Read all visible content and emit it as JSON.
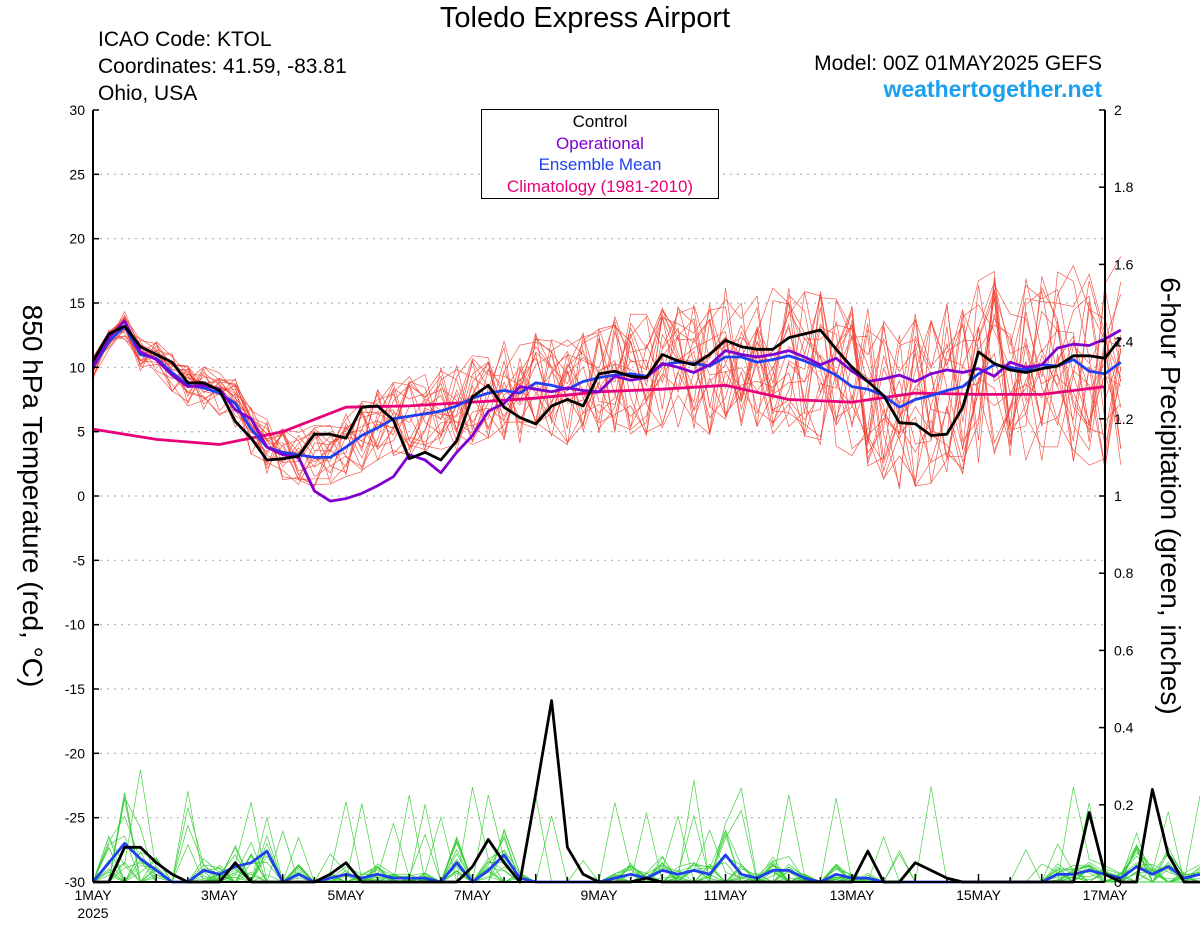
{
  "header": {
    "title": "Toledo Express Airport",
    "icao": "ICAO Code: KTOL",
    "coordinates": "Coordinates: 41.59, -83.81",
    "location": "Ohio, USA",
    "model": "Model: 00Z 01MAY2025 GEFS",
    "site": "weathertogether.net"
  },
  "legend": {
    "control": "Control",
    "operational": "Operational",
    "mean": "Ensemble Mean",
    "climatology": "Climatology (1981-2010)"
  },
  "colors": {
    "control": "#000000",
    "operational": "#8000d0",
    "mean": "#2040f0",
    "climatology": "#e8007a",
    "members_temp": "#f04030",
    "members_precip": "#30cc30",
    "site": "#1aa0f0",
    "grid": "#b0b0b0"
  },
  "chart_data": {
    "type": "line",
    "x_unit": "days since 00Z 01MAY2025",
    "xlim": [
      0,
      16
    ],
    "x_ticks": [
      {
        "x": 0,
        "label": "1MAY",
        "sublabel": "2025"
      },
      {
        "x": 2,
        "label": "3MAY"
      },
      {
        "x": 4,
        "label": "5MAY"
      },
      {
        "x": 6,
        "label": "7MAY"
      },
      {
        "x": 8,
        "label": "9MAY"
      },
      {
        "x": 10,
        "label": "11MAY"
      },
      {
        "x": 12,
        "label": "13MAY"
      },
      {
        "x": 14,
        "label": "15MAY"
      },
      {
        "x": 16,
        "label": "17MAY"
      }
    ],
    "ylabel_left": "850 hPa Temperature (red, °C)",
    "ylabel_right": "6-hour Precipitation (green, inches)",
    "ylim_left": [
      -30,
      30
    ],
    "yticks_left": [
      -30,
      -25,
      -20,
      -15,
      -10,
      -5,
      0,
      5,
      10,
      15,
      20,
      25,
      30
    ],
    "ylim_right": [
      0,
      2
    ],
    "yticks_right": [
      0,
      0.2,
      0.4,
      0.6,
      0.8,
      1,
      1.2,
      1.4,
      1.6,
      1.8,
      2
    ],
    "grid": "dotted horizontal",
    "temperature_series": [
      {
        "name": "Control",
        "x_step": 0.25,
        "values": [
          10.5,
          12.6,
          13.2,
          11.6,
          11.0,
          10.4,
          8.8,
          8.8,
          8.2,
          5.8,
          4.5,
          2.8,
          2.9,
          3.1,
          4.8,
          4.8,
          4.5,
          6.9,
          7.0,
          5.9,
          2.9,
          3.4,
          2.8,
          4.3,
          7.7,
          8.6,
          6.9,
          6.1,
          5.6,
          7.0,
          7.5,
          7.0,
          9.5,
          9.7,
          9.3,
          9.2,
          11.0,
          10.5,
          10.2,
          11.0,
          12.1,
          11.6,
          11.4,
          11.4,
          12.3,
          12.6,
          12.9,
          11.4,
          10.0,
          8.9,
          7.8,
          5.7,
          5.6,
          4.7,
          4.8,
          6.9,
          11.2,
          10.3,
          9.8,
          9.6,
          9.9,
          10.1,
          10.9,
          10.9,
          10.7,
          12.3
        ]
      },
      {
        "name": "Operational",
        "x_step": 0.25,
        "values": [
          10.1,
          12.3,
          13.6,
          11.2,
          10.6,
          9.4,
          8.5,
          8.6,
          8.3,
          6.7,
          6.0,
          3.8,
          3.2,
          3.0,
          0.4,
          -0.4,
          -0.2,
          0.2,
          0.8,
          1.5,
          3.2,
          2.8,
          1.8,
          3.4,
          4.7,
          6.6,
          7.2,
          8.5,
          8.3,
          8.1,
          8.4,
          8.2,
          8.1,
          9.3,
          9.0,
          9.2,
          10.3,
          10.0,
          9.6,
          10.2,
          11.3,
          11.0,
          10.8,
          11.0,
          11.3,
          10.8,
          10.2,
          10.7,
          9.7,
          8.9,
          9.1,
          9.4,
          8.9,
          9.5,
          9.8,
          9.6,
          9.9,
          9.3,
          10.4,
          10.0,
          10.2,
          11.5,
          11.8,
          11.7,
          12.2,
          12.9
        ]
      },
      {
        "name": "Ensemble Mean",
        "x_step": 0.25,
        "values": [
          10.0,
          12.0,
          13.2,
          11.0,
          10.7,
          9.6,
          8.6,
          8.4,
          8.0,
          7.2,
          5.2,
          3.8,
          3.4,
          3.2,
          3.0,
          3.0,
          3.8,
          4.7,
          5.3,
          6.0,
          6.2,
          6.4,
          6.6,
          7.0,
          7.6,
          8.0,
          8.2,
          8.0,
          8.8,
          8.6,
          8.3,
          8.9,
          9.2,
          9.4,
          9.5,
          9.3,
          10.2,
          10.4,
          10.3,
          10.1,
          10.8,
          10.8,
          10.4,
          10.6,
          10.9,
          10.5,
          10.0,
          9.4,
          8.5,
          8.3,
          7.8,
          6.9,
          7.5,
          7.8,
          8.2,
          8.5,
          9.5,
          10.2,
          10.0,
          9.8,
          10.2,
          10.1,
          10.6,
          9.7,
          9.5,
          10.4
        ]
      },
      {
        "name": "Climatology (1981-2010)",
        "x_step": 1,
        "values": [
          5.2,
          4.4,
          4.0,
          5.0,
          6.9,
          7.0,
          7.3,
          7.6,
          8.1,
          8.3,
          8.6,
          7.5,
          7.3,
          8.0,
          7.9,
          7.9,
          8.5
        ]
      }
    ],
    "precipitation_series": [
      {
        "name": "Control",
        "x_step": 0.25,
        "values": [
          0.0,
          0.0,
          0.09,
          0.09,
          0.05,
          0.02,
          0.0,
          0.0,
          0.0,
          0.05,
          0.0,
          0.0,
          0.0,
          0.0,
          0.0,
          0.02,
          0.05,
          0.0,
          0.0,
          0.0,
          0.0,
          0.0,
          0.0,
          0.0,
          0.04,
          0.11,
          0.05,
          0.0,
          0.23,
          0.47,
          0.09,
          0.02,
          0.0,
          0.0,
          0.0,
          0.01,
          0.0,
          0.0,
          0.0,
          0.0,
          0.0,
          0.0,
          0.0,
          0.0,
          0.0,
          0.0,
          0.0,
          0.0,
          0.0,
          0.08,
          0.0,
          0.0,
          0.05,
          0.03,
          0.01,
          0.0,
          0.0,
          0.0,
          0.0,
          0.0,
          0.0,
          0.0,
          0.0,
          0.18,
          0.02,
          0.0,
          0.0,
          0.24,
          0.07,
          0.0,
          0.0
        ]
      },
      {
        "name": "Ensemble Mean",
        "x_step": 0.25,
        "values": [
          0.0,
          0.05,
          0.1,
          0.06,
          0.03,
          0.0,
          0.0,
          0.03,
          0.02,
          0.04,
          0.05,
          0.08,
          0.0,
          0.02,
          0.0,
          0.01,
          0.02,
          0.01,
          0.02,
          0.01,
          0.01,
          0.01,
          0.0,
          0.05,
          0.0,
          0.03,
          0.07,
          0.01,
          0.0,
          0.0,
          0.0,
          0.0,
          0.0,
          0.01,
          0.02,
          0.01,
          0.03,
          0.02,
          0.03,
          0.02,
          0.07,
          0.02,
          0.01,
          0.03,
          0.03,
          0.01,
          0.0,
          0.02,
          0.01,
          0.01,
          0.0,
          0.0,
          0.0,
          0.0,
          0.0,
          0.0,
          0.0,
          0.0,
          0.0,
          0.0,
          0.0,
          0.02,
          0.02,
          0.03,
          0.02,
          0.01,
          0.04,
          0.02,
          0.04,
          0.01,
          0.02
        ]
      }
    ]
  }
}
